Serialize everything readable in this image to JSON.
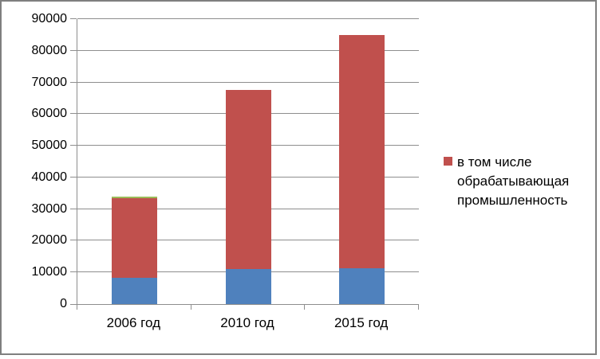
{
  "window": {
    "background_color": "#ffffff",
    "border_color": "#7f7f7f"
  },
  "chart_data": {
    "type": "bar",
    "stacked": true,
    "title": "",
    "categories": [
      "2006 год",
      "2010 год",
      "2015 год"
    ],
    "series": [
      {
        "id": "bottom-blue-segment",
        "label": "",
        "color": "#4F81BD",
        "values": [
          8200,
          11100,
          11400
        ]
      },
      {
        "id": "top-red-segment",
        "label": "в том числе обрабатывающая промышленность",
        "color": "#C0504D",
        "values": [
          25200,
          56600,
          73700
        ]
      },
      {
        "id": "green-sliver-segment",
        "label": "",
        "color": "#9BBB59",
        "values": [
          500,
          0,
          0
        ]
      }
    ],
    "stack_totals": [
      33900,
      67700,
      85100
    ],
    "y_axis": {
      "min": 0,
      "max": 90000,
      "step": 10000,
      "tick_labels": [
        "0",
        "10000",
        "20000",
        "30000",
        "40000",
        "50000",
        "60000",
        "70000",
        "80000",
        "90000"
      ]
    },
    "x_axis": {
      "tick_labels": [
        "2006 год",
        "2010 год",
        "2015 год"
      ]
    },
    "grid": true,
    "grid_color": "#8e8e8e",
    "legend": {
      "position": "right",
      "entries": [
        {
          "label": "в том числе обрабатывающая промышленность",
          "swatch_color": "#C0504D"
        }
      ]
    }
  }
}
